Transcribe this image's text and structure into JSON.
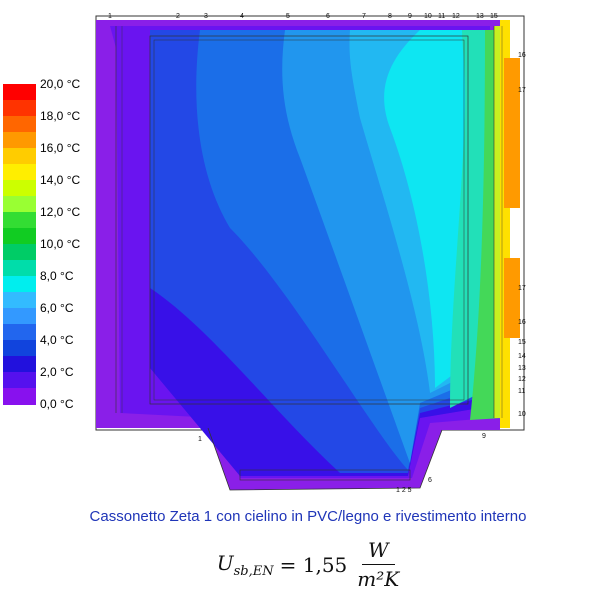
{
  "legend": {
    "labels": [
      "20,0 °C",
      "18,0 °C",
      "16,0 °C",
      "14,0 °C",
      "12,0 °C",
      "10,0 °C",
      "8,0 °C",
      "6,0 °C",
      "4,0 °C",
      "2,0 °C",
      "0,0 °C"
    ],
    "colors": [
      "#ff0000",
      "#ff3300",
      "#ff6600",
      "#ff9900",
      "#ffcc00",
      "#ffee00",
      "#ccff00",
      "#99ff33",
      "#33dd33",
      "#11cc22",
      "#00cc66",
      "#00ddaa",
      "#00eeee",
      "#33bbff",
      "#3399ff",
      "#2266ee",
      "#1144dd",
      "#2211dd",
      "#5511ee",
      "#8811ee"
    ]
  },
  "diagram": {
    "top_labels": [
      "1",
      "2",
      "3",
      "4",
      "5",
      "6",
      "7",
      "8",
      "9",
      "10",
      "11",
      "12",
      "13",
      "15"
    ],
    "right_labels": [
      "16",
      "17",
      "17",
      "16",
      "15",
      "14",
      "13",
      "12",
      "11",
      "10"
    ],
    "bottom_labels": [
      "9",
      "1",
      "1 2 5",
      "6"
    ],
    "colors": {
      "outer_violet": "#8a1fe8",
      "violet2": "#6a14f0",
      "deep_blue": "#3810e8",
      "blue_dark": "#2348e6",
      "blue_mid": "#1b6ee8",
      "blue_light": "#2196ee",
      "sky": "#22b8f2",
      "cyan": "#0ee6f2",
      "teal": "#22e0b8",
      "green": "#44d858",
      "green_yellow": "#c8f020",
      "yellow": "#ffe000",
      "orange": "#ff9a00",
      "orange_dark": "#ff7a00"
    }
  },
  "caption": "Cassonetto Zeta 1 con cielino in PVC/legno e rivestimento interno",
  "formula": {
    "lhs": "U",
    "subscript": "sb,EN",
    "value": "= 1,55",
    "numerator": "W",
    "denominator": "m²K"
  }
}
